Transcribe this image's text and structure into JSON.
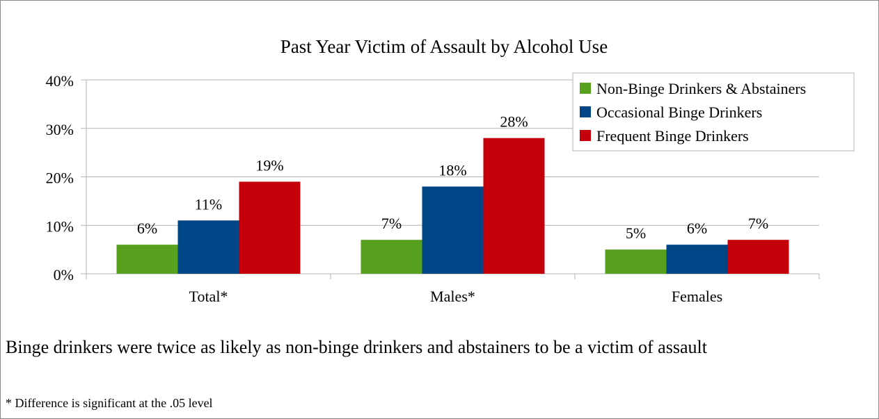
{
  "chart_data": {
    "type": "bar",
    "title": "Past Year Victim of Assault by Alcohol Use",
    "categories": [
      "Total*",
      "Males*",
      "Females"
    ],
    "series": [
      {
        "name": "Non-Binge Drinkers & Abstainers",
        "values": [
          6,
          7,
          5
        ],
        "labels": [
          "6%",
          "7%",
          "5%"
        ]
      },
      {
        "name": "Occasional Binge Drinkers",
        "values": [
          11,
          18,
          6
        ],
        "labels": [
          "11%",
          "18%",
          "6%"
        ]
      },
      {
        "name": "Frequent Binge Drinkers",
        "values": [
          19,
          28,
          7
        ],
        "labels": [
          "19%",
          "28%",
          "7%"
        ]
      }
    ],
    "ylim": [
      0,
      40
    ],
    "yticks": [
      0,
      10,
      20,
      30,
      40
    ],
    "ytick_labels": [
      "0%",
      "10%",
      "20%",
      "30%",
      "40%"
    ],
    "xlabel": "",
    "ylabel": "",
    "grid": true,
    "legend_position": "top-right",
    "colors": [
      "#57a11f",
      "#004586",
      "#c5000b"
    ]
  },
  "caption": "Binge drinkers were twice as likely as non-binge drinkers and abstainers to be a victim of assault",
  "footnote": "* Difference is significant at the .05 level"
}
